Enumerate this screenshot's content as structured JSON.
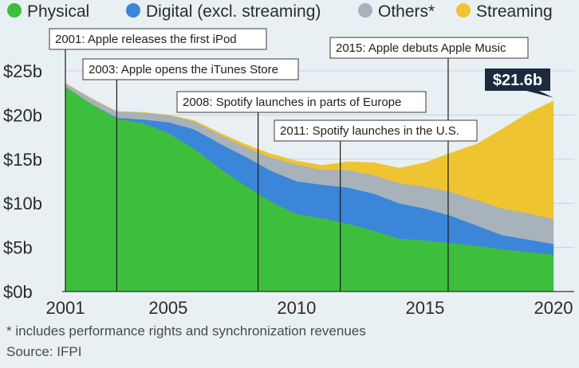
{
  "chart_data": {
    "type": "area",
    "stacked": true,
    "x": [
      2001,
      2002,
      2003,
      2004,
      2005,
      2006,
      2007,
      2008,
      2009,
      2010,
      2011,
      2012,
      2013,
      2014,
      2015,
      2016,
      2017,
      2018,
      2019,
      2020
    ],
    "series": [
      {
        "name": "Physical",
        "color": "#3dbf3d",
        "values": [
          23.2,
          21.3,
          19.6,
          19.1,
          18.0,
          16.2,
          14.0,
          12.0,
          10.2,
          8.8,
          8.3,
          7.7,
          6.9,
          6.0,
          5.8,
          5.5,
          5.2,
          4.8,
          4.5,
          4.2
        ]
      },
      {
        "name": "Digital (excl. streaming)",
        "color": "#3b86d9",
        "values": [
          0.0,
          0.0,
          0.1,
          0.4,
          1.2,
          2.2,
          2.8,
          3.3,
          3.5,
          3.7,
          3.8,
          4.1,
          4.2,
          4.0,
          3.6,
          3.1,
          2.3,
          1.6,
          1.4,
          1.2
        ]
      },
      {
        "name": "Others*",
        "color": "#a8b2ba",
        "values": [
          0.4,
          0.6,
          0.7,
          0.8,
          0.8,
          0.9,
          1.0,
          1.1,
          1.5,
          1.9,
          1.7,
          2.0,
          2.1,
          2.3,
          2.5,
          2.7,
          2.9,
          3.0,
          3.0,
          2.8
        ]
      },
      {
        "name": "Streaming",
        "color": "#efc431",
        "values": [
          0.0,
          0.0,
          0.0,
          0.0,
          0.0,
          0.1,
          0.2,
          0.3,
          0.4,
          0.4,
          0.5,
          0.9,
          1.4,
          1.7,
          2.7,
          4.4,
          6.3,
          9.0,
          11.3,
          13.4
        ]
      }
    ],
    "xticks": [
      2001,
      2005,
      2010,
      2015,
      2020
    ],
    "yticks": [
      {
        "value": 0,
        "label": "$0b"
      },
      {
        "value": 5,
        "label": "$5b"
      },
      {
        "value": 10,
        "label": "$10b"
      },
      {
        "value": 15,
        "label": "$15b"
      },
      {
        "value": 20,
        "label": "$20b"
      },
      {
        "value": 25,
        "label": "$25b"
      }
    ],
    "xlim": [
      2001,
      2020
    ],
    "ylim": [
      0,
      25
    ],
    "grid": true,
    "legend": "top",
    "annotations": [
      {
        "year": 2001.0,
        "text": "2001: Apple releases the first iPod"
      },
      {
        "year": 2003.0,
        "text": "2003: Apple opens the iTunes Store"
      },
      {
        "year": 2008.5,
        "text": "2008: Spotify launches in parts of Europe"
      },
      {
        "year": 2011.7,
        "text": "2011: Spotify launches in the U.S."
      },
      {
        "year": 2015.9,
        "text": "2015: Apple debuts Apple Music"
      }
    ],
    "callout": {
      "year": 2020,
      "value": 21.6,
      "text": "$21.6b",
      "color": "#1c2a3d"
    }
  },
  "footnote": "* includes performance rights and synchronization revenues",
  "source": "Source: IFPI"
}
